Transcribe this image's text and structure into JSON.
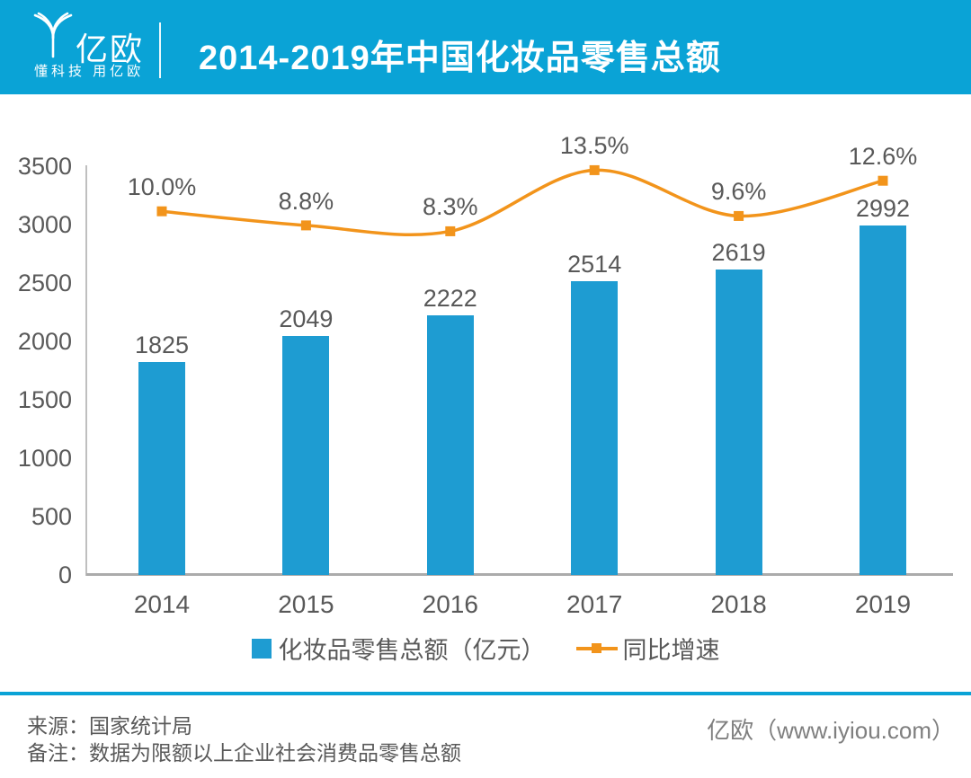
{
  "header": {
    "logo_text": "亿欧",
    "logo_tagline": "懂科技 用亿欧",
    "title": "2014-2019年中国化妆品零售总额"
  },
  "chart_data": {
    "type": "bar",
    "subtype": "bar-line-combo",
    "title": "2014-2019年中国化妆品零售总额",
    "categories": [
      "2014",
      "2015",
      "2016",
      "2017",
      "2018",
      "2019"
    ],
    "series": [
      {
        "name": "化妆品零售总额（亿元）",
        "type": "bar",
        "values": [
          1825,
          2049,
          2222,
          2514,
          2619,
          2992
        ],
        "labels": [
          "1825",
          "2049",
          "2222",
          "2514",
          "2619",
          "2992"
        ]
      },
      {
        "name": "同比增速",
        "type": "line",
        "values": [
          10.0,
          8.8,
          8.3,
          13.5,
          9.6,
          12.6
        ],
        "labels": [
          "10.0%",
          "8.8%",
          "8.3%",
          "13.5%",
          "9.6%",
          "12.6%"
        ]
      }
    ],
    "y_axis": {
      "min": 0,
      "max": 3500,
      "step": 500,
      "ticks": [
        "3500",
        "3000",
        "2500",
        "2000",
        "1500",
        "1000",
        "500",
        "0"
      ]
    },
    "gridlines": false,
    "legend_position": "bottom",
    "data_labels": true
  },
  "legend": {
    "bar_label": "化妆品零售总额（亿元）",
    "line_label": "同比增速"
  },
  "footer": {
    "source": "来源：国家统计局",
    "note": "备注：数据为限额以上企业社会消费品零售总额",
    "brand": "亿欧（www.iyiou.com）"
  },
  "colors": {
    "cyan": "#0AA3D6",
    "bar_blue": "#1E9CD2",
    "orange": "#F2941B",
    "text_gray": "#595959",
    "brand_gray": "#7F7F7F"
  }
}
